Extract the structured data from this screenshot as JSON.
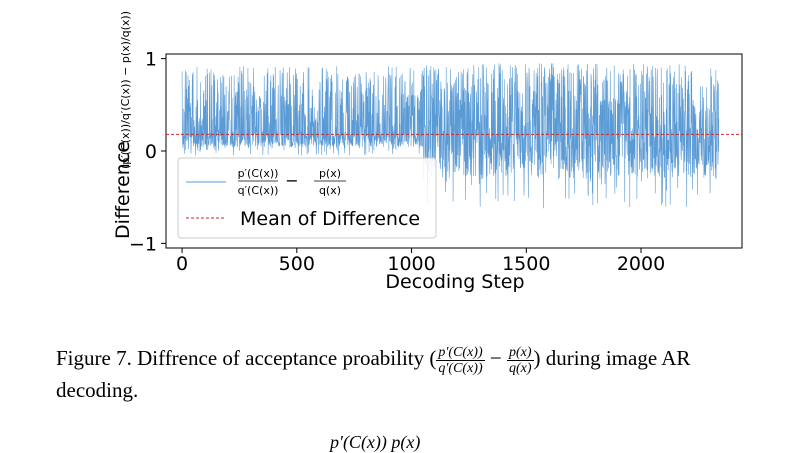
{
  "chart_data": {
    "type": "line",
    "xlabel": "Decoding Step",
    "ylabel_prefix": "Difference",
    "ylabel_math": "(p′(C(x))/q′(C(x)) − p(x)/q(x))",
    "xlim": [
      -70,
      2440
    ],
    "ylim": [
      -1.05,
      1.05
    ],
    "xticks": [
      0,
      500,
      1000,
      1500,
      2000
    ],
    "xtick_labels": [
      "0",
      "500",
      "1000",
      "1500",
      "2000"
    ],
    "yticks": [
      -1,
      0,
      1
    ],
    "ytick_labels": [
      "−1",
      "0",
      "1"
    ],
    "n_steps": 2340,
    "mean": 0.18,
    "series": [
      {
        "name": "p′(C(x))/q′(C(x)) − p(x)/q(x)",
        "color": "#5b9bd5",
        "style": "solid",
        "shape": "dense oscillation, roughly between -0.6 and 0.95",
        "segments": [
          {
            "from": 0,
            "to": 1050,
            "min": -0.05,
            "max": 0.92
          },
          {
            "from": 1050,
            "to": 2340,
            "min": -0.62,
            "max": 0.95
          }
        ]
      },
      {
        "name": "Mean of Difference",
        "color": "#d62728",
        "style": "dashed",
        "y": 0.18
      }
    ],
    "legend": {
      "placement": "lower-left",
      "entries": [
        {
          "kind": "math",
          "num1": "p′(C(x))",
          "den1": "q′(C(x))",
          "op": "−",
          "num2": "p(x)",
          "den2": "q(x)"
        },
        {
          "kind": "text",
          "label": "Mean of Difference"
        }
      ]
    }
  },
  "caption": {
    "text_start": "Figure 7.  Diffrence of acceptance proability (",
    "num1": "p′(C(x))",
    "den1": "q′(C(x))",
    "op": "−",
    "num2": "p(x)",
    "den2": "q(x)",
    "text_end": ") during image AR decoding."
  },
  "bottom_fragment": "p′(C(x))    p(x)"
}
